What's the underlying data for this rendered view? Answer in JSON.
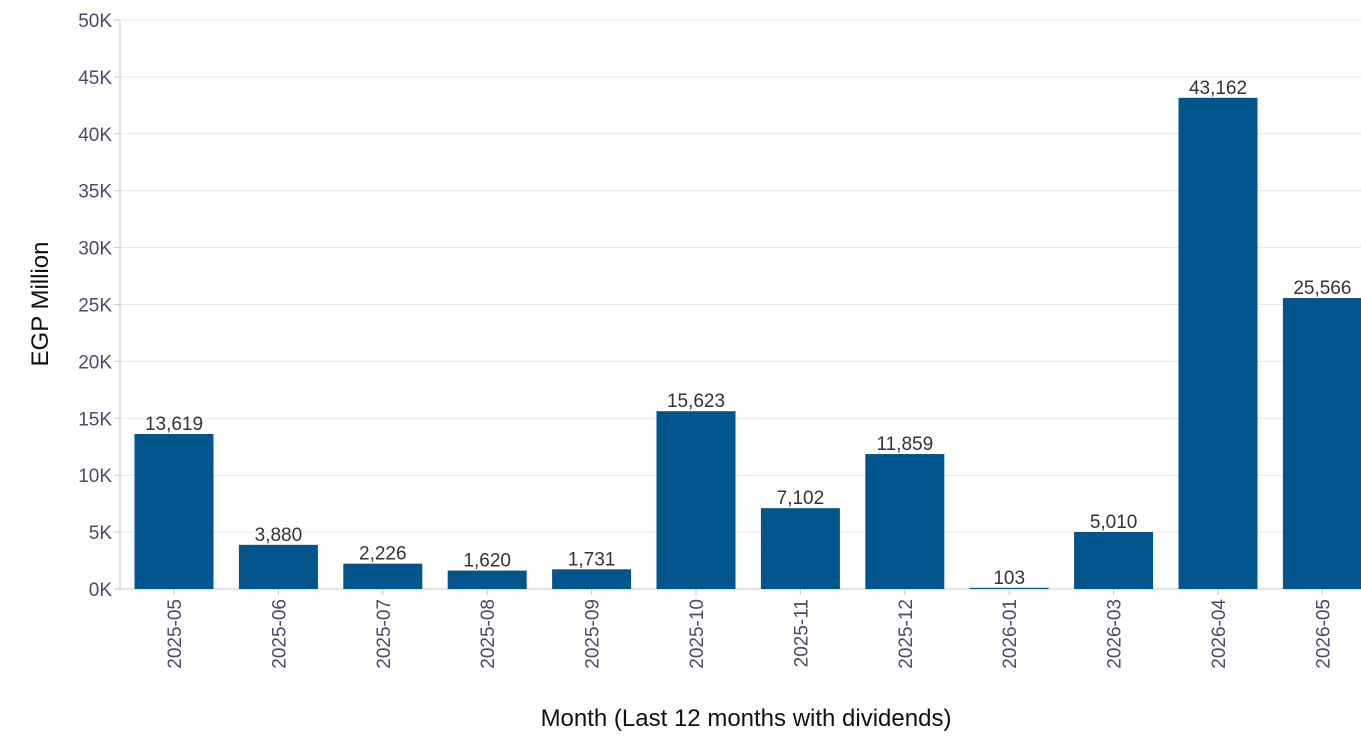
{
  "chart_data": {
    "type": "bar",
    "categories": [
      "2025-05",
      "2025-06",
      "2025-07",
      "2025-08",
      "2025-09",
      "2025-10",
      "2025-11",
      "2025-12",
      "2026-01",
      "2026-03",
      "2026-04",
      "2026-05"
    ],
    "values": [
      13619,
      3880,
      2226,
      1620,
      1731,
      15623,
      7102,
      11859,
      103,
      5010,
      43162,
      25566
    ],
    "value_labels": [
      "13,619",
      "3,880",
      "2,226",
      "1,620",
      "1,731",
      "15,623",
      "7,102",
      "11,859",
      "103",
      "5,010",
      "43,162",
      "25,566"
    ],
    "title": "",
    "xlabel": "Month (Last 12 months with dividends)",
    "ylabel": "EGP Million",
    "ylim": [
      0,
      50000
    ],
    "yticks": [
      0,
      5000,
      10000,
      15000,
      20000,
      25000,
      30000,
      35000,
      40000,
      45000,
      50000
    ],
    "ytick_labels": [
      "0K",
      "5K",
      "10K",
      "15K",
      "20K",
      "25K",
      "30K",
      "35K",
      "40K",
      "45K",
      "50K"
    ],
    "grid": true,
    "legend": "none",
    "bar_color": "#00558c"
  }
}
